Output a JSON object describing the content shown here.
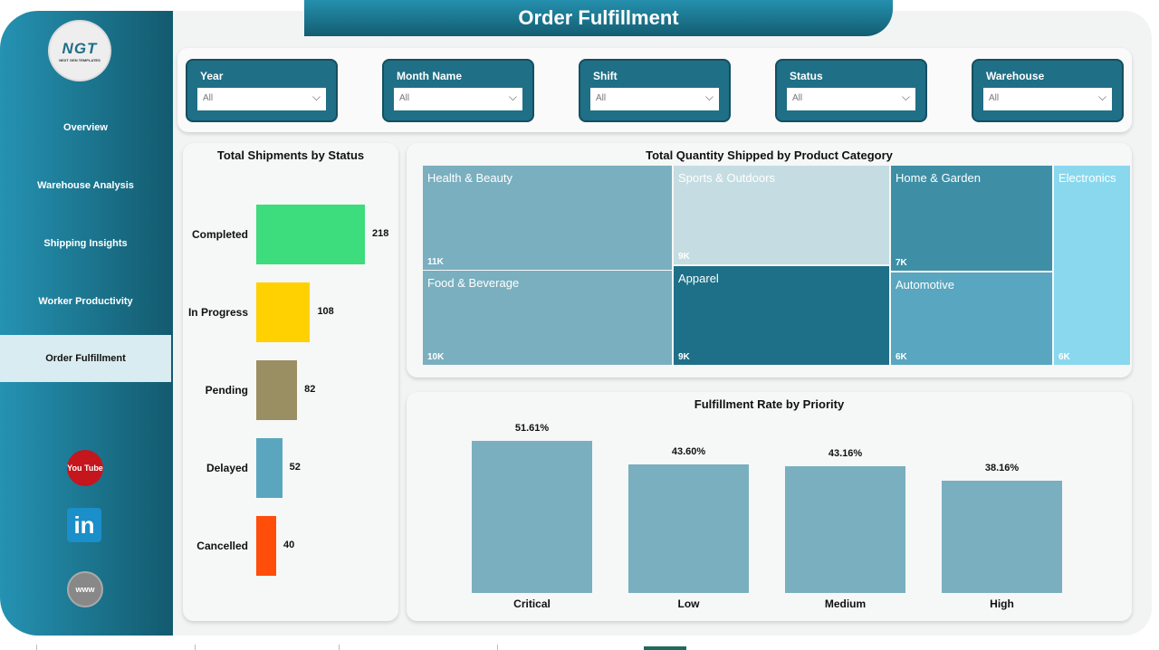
{
  "title": "Order Fulfillment",
  "logo": {
    "text": "NGT",
    "subtext": "NEXT GEN TEMPLATES"
  },
  "nav": [
    {
      "label": "Overview"
    },
    {
      "label": "Warehouse Analysis"
    },
    {
      "label": "Shipping Insights"
    },
    {
      "label": "Worker Productivity"
    },
    {
      "label": "Order Fulfillment",
      "active": true
    }
  ],
  "social": [
    {
      "icon": "youtube-icon",
      "text": "You Tube"
    },
    {
      "icon": "linkedin-icon",
      "text": "in"
    },
    {
      "icon": "globe-icon",
      "text": "www"
    }
  ],
  "filters": [
    {
      "label": "Year",
      "value": "All"
    },
    {
      "label": "Month Name",
      "value": "All"
    },
    {
      "label": "Shift",
      "value": "All"
    },
    {
      "label": "Status",
      "value": "All"
    },
    {
      "label": "Warehouse",
      "value": "All"
    }
  ],
  "chart_data": [
    {
      "type": "bar",
      "orientation": "horizontal",
      "title": "Total Shipments by Status",
      "categories": [
        "Completed",
        "In Progress",
        "Pending",
        "Delayed",
        "Cancelled"
      ],
      "values": [
        218,
        108,
        82,
        52,
        40
      ],
      "colors": [
        "#3ddc7c",
        "#ffd100",
        "#9a8f63",
        "#5aa6bf",
        "#ff4d0a"
      ]
    },
    {
      "type": "treemap",
      "title": "Total Quantity Shipped by Product Category",
      "items": [
        {
          "name": "Health & Beauty",
          "label": "11K",
          "color": "#7aafbf"
        },
        {
          "name": "Food & Beverage",
          "label": "10K",
          "color": "#7aafbf"
        },
        {
          "name": "Sports & Outdoors",
          "label": "9K",
          "color": "#c5dde2"
        },
        {
          "name": "Apparel",
          "label": "9K",
          "color": "#1e7088"
        },
        {
          "name": "Home & Garden",
          "label": "7K",
          "color": "#3e8fa5"
        },
        {
          "name": "Automotive",
          "label": "6K",
          "color": "#58a6bf"
        },
        {
          "name": "Electronics",
          "label": "6K",
          "color": "#8ad8ee"
        }
      ]
    },
    {
      "type": "bar",
      "title": "Fulfillment Rate by Priority",
      "categories": [
        "Critical",
        "Low",
        "Medium",
        "High"
      ],
      "values": [
        51.61,
        43.6,
        43.16,
        38.16
      ],
      "labels": [
        "51.61%",
        "43.60%",
        "43.16%",
        "38.16%"
      ],
      "ylim": [
        0,
        55
      ],
      "color": "#7aafbf"
    }
  ]
}
